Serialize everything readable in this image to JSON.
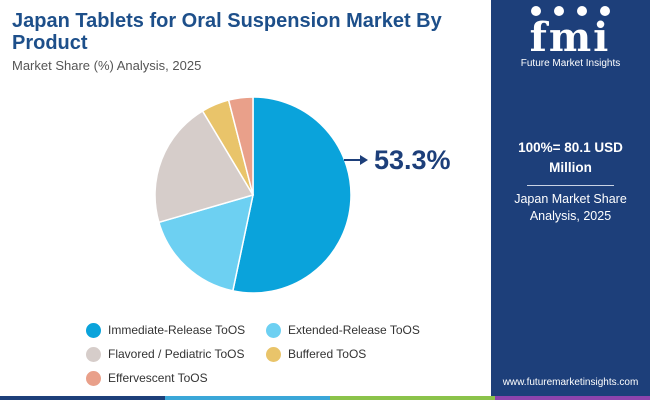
{
  "header": {
    "title": "Japan Tablets for Oral Suspension Market By Product",
    "subtitle": "Market Share (%) Analysis, 2025"
  },
  "chart_data": {
    "type": "pie",
    "slices": [
      {
        "label": "Immediate-Release ToOS",
        "value": 53.3,
        "color": "#0aa3db"
      },
      {
        "label": "Extended-Release ToOS",
        "value": 17.2,
        "color": "#6dd0f2"
      },
      {
        "label": "Flavored / Pediatric ToOS",
        "value": 20.9,
        "color": "#d6cdca"
      },
      {
        "label": "Buffered ToOS",
        "value": 4.6,
        "color": "#e9c46a"
      },
      {
        "label": "Effervescent ToOS",
        "value": 4.0,
        "color": "#e9a08a"
      }
    ],
    "annotation": "53.3%",
    "legend_position": "bottom"
  },
  "side_panel": {
    "logo_mark": "fmi",
    "logo_text": "Future Market Insights",
    "total": "100%= 80.1 USD Million",
    "analysis": "Japan Market Share Analysis, 2025",
    "website": "www.futuremarketinsights.com"
  },
  "colors": {
    "title": "#1d4f8a",
    "panel": "#1d3f7a",
    "strip": [
      "#1d3f7a",
      "#3aa7d8",
      "#8bc34a",
      "#8e44ad"
    ]
  }
}
